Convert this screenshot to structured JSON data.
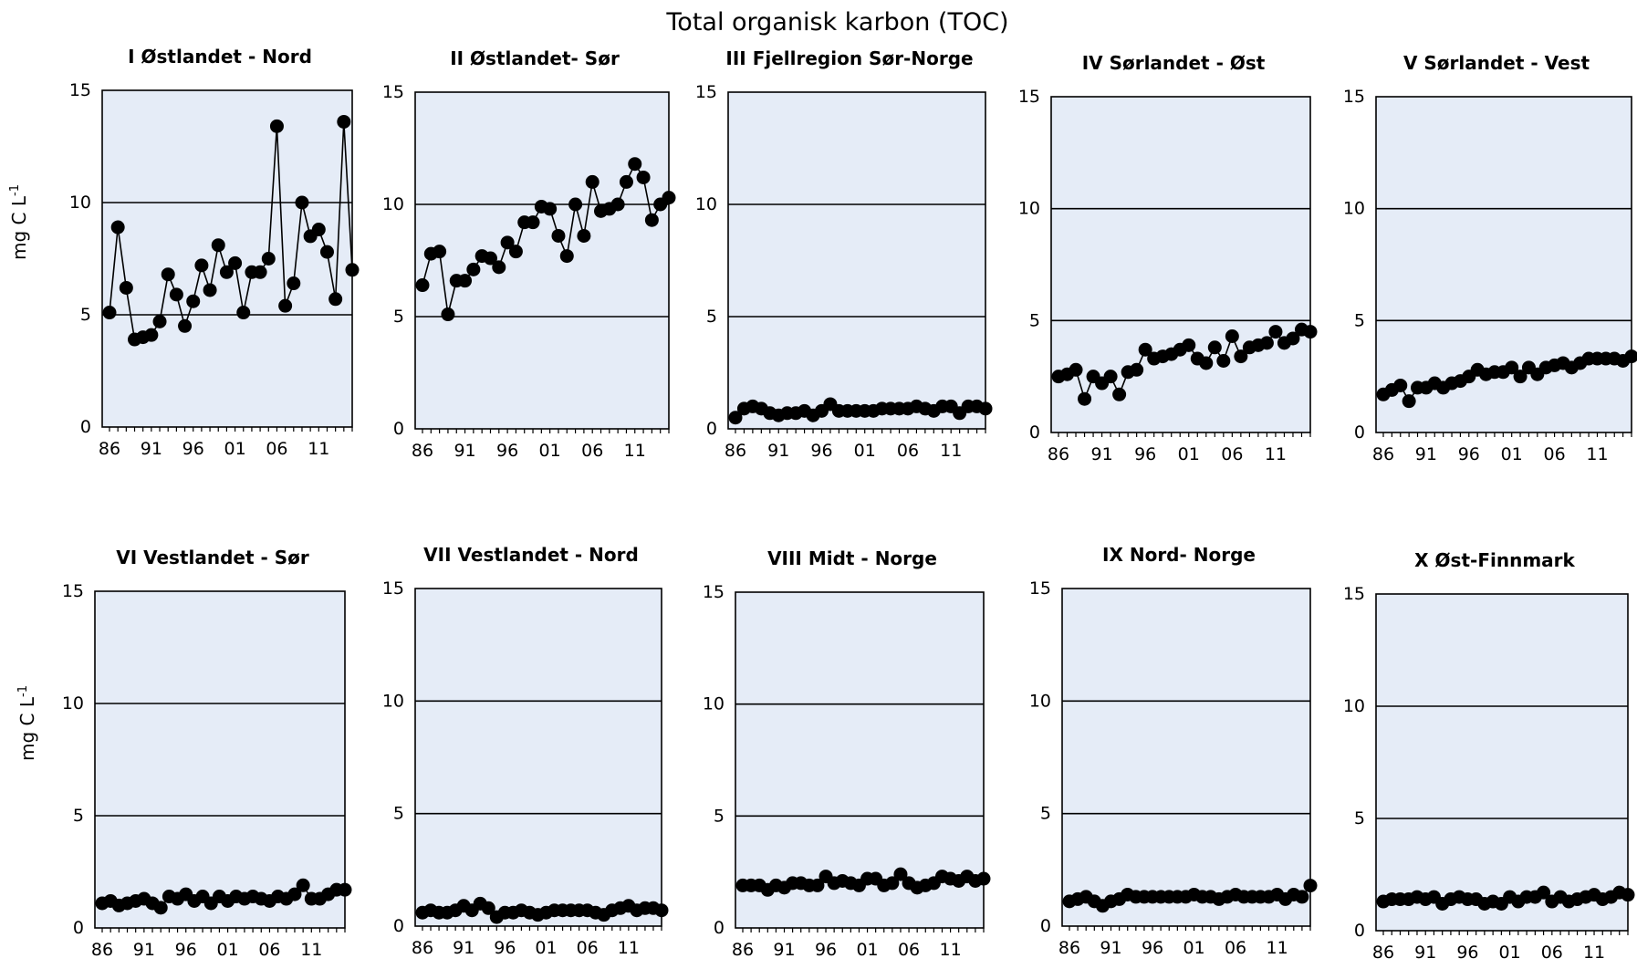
{
  "figure": {
    "title": "Total organisk karbon (TOC)",
    "ylabel_base": "mg C L",
    "ylabel_sup": "-1",
    "plot_bg": "#e5ecf7",
    "marker_color": "#000000",
    "line_color": "#000000"
  },
  "chart_data": [
    {
      "type": "line",
      "title": "I Østlandet - Nord",
      "ylim": [
        0,
        15
      ],
      "yticks": [
        "0",
        "5",
        "10",
        "15"
      ],
      "xticks": [
        "86",
        "91",
        "96",
        "01",
        "06",
        "11"
      ],
      "grid": true,
      "x": [
        1986,
        1987,
        1988,
        1989,
        1990,
        1991,
        1992,
        1993,
        1994,
        1995,
        1996,
        1997,
        1998,
        1999,
        2000,
        2001,
        2002,
        2003,
        2004,
        2005,
        2006,
        2007,
        2008,
        2009,
        2010,
        2011,
        2012,
        2013,
        2014,
        2015
      ],
      "values": [
        5.1,
        8.9,
        6.2,
        3.9,
        4.0,
        4.1,
        4.7,
        6.8,
        5.9,
        4.5,
        5.6,
        7.2,
        6.1,
        8.1,
        6.9,
        7.3,
        5.1,
        6.9,
        6.9,
        7.5,
        13.4,
        5.4,
        6.4,
        10.0,
        8.5,
        8.8,
        7.8,
        5.7,
        13.6,
        7.0
      ]
    },
    {
      "type": "line",
      "title": "II Østlandet- Sør",
      "ylim": [
        0,
        15
      ],
      "yticks": [
        "0",
        "5",
        "10",
        "15"
      ],
      "xticks": [
        "86",
        "91",
        "96",
        "01",
        "06",
        "11"
      ],
      "grid": true,
      "x": [
        1986,
        1987,
        1988,
        1989,
        1990,
        1991,
        1992,
        1993,
        1994,
        1995,
        1996,
        1997,
        1998,
        1999,
        2000,
        2001,
        2002,
        2003,
        2004,
        2005,
        2006,
        2007,
        2008,
        2009,
        2010,
        2011,
        2012,
        2013,
        2014,
        2015
      ],
      "values": [
        6.4,
        7.8,
        7.9,
        5.1,
        6.6,
        6.6,
        7.1,
        7.7,
        7.6,
        7.2,
        8.3,
        7.9,
        9.2,
        9.2,
        9.9,
        9.8,
        8.6,
        7.7,
        10.0,
        8.6,
        11.0,
        9.7,
        9.8,
        10.0,
        11.0,
        11.8,
        11.2,
        9.3,
        10.0,
        10.3
      ]
    },
    {
      "type": "line",
      "title": "III Fjellregion Sør-Norge",
      "ylim": [
        0,
        15
      ],
      "yticks": [
        "0",
        "5",
        "10",
        "15"
      ],
      "xticks": [
        "86",
        "91",
        "96",
        "01",
        "06",
        "11"
      ],
      "grid": true,
      "x": [
        1986,
        1987,
        1988,
        1989,
        1990,
        1991,
        1992,
        1993,
        1994,
        1995,
        1996,
        1997,
        1998,
        1999,
        2000,
        2001,
        2002,
        2003,
        2004,
        2005,
        2006,
        2007,
        2008,
        2009,
        2010,
        2011,
        2012,
        2013,
        2014,
        2015
      ],
      "values": [
        0.5,
        0.9,
        1.0,
        0.9,
        0.7,
        0.6,
        0.7,
        0.7,
        0.8,
        0.6,
        0.8,
        1.1,
        0.8,
        0.8,
        0.8,
        0.8,
        0.8,
        0.9,
        0.9,
        0.9,
        0.9,
        1.0,
        0.9,
        0.8,
        1.0,
        1.0,
        0.7,
        1.0,
        1.0,
        0.9
      ]
    },
    {
      "type": "line",
      "title": "IV Sørlandet - Øst",
      "ylim": [
        0,
        15
      ],
      "yticks": [
        "0",
        "5",
        "10",
        "15"
      ],
      "xticks": [
        "86",
        "91",
        "96",
        "01",
        "06",
        "11"
      ],
      "grid": true,
      "x": [
        1986,
        1987,
        1988,
        1989,
        1990,
        1991,
        1992,
        1993,
        1994,
        1995,
        1996,
        1997,
        1998,
        1999,
        2000,
        2001,
        2002,
        2003,
        2004,
        2005,
        2006,
        2007,
        2008,
        2009,
        2010,
        2011,
        2012,
        2013,
        2014,
        2015
      ],
      "values": [
        2.5,
        2.6,
        2.8,
        1.5,
        2.5,
        2.2,
        2.5,
        1.7,
        2.7,
        2.8,
        3.7,
        3.3,
        3.4,
        3.5,
        3.7,
        3.9,
        3.3,
        3.1,
        3.8,
        3.2,
        4.3,
        3.4,
        3.8,
        3.9,
        4.0,
        4.5,
        4.0,
        4.2,
        4.6,
        4.5
      ]
    },
    {
      "type": "line",
      "title": "V Sørlandet - Vest",
      "ylim": [
        0,
        15
      ],
      "yticks": [
        "0",
        "5",
        "10",
        "15"
      ],
      "xticks": [
        "86",
        "91",
        "96",
        "01",
        "06",
        "11"
      ],
      "grid": true,
      "x": [
        1986,
        1987,
        1988,
        1989,
        1990,
        1991,
        1992,
        1993,
        1994,
        1995,
        1996,
        1997,
        1998,
        1999,
        2000,
        2001,
        2002,
        2003,
        2004,
        2005,
        2006,
        2007,
        2008,
        2009,
        2010,
        2011,
        2012,
        2013,
        2014,
        2015
      ],
      "values": [
        1.7,
        1.9,
        2.1,
        1.4,
        2.0,
        2.0,
        2.2,
        2.0,
        2.2,
        2.3,
        2.5,
        2.8,
        2.6,
        2.7,
        2.7,
        2.9,
        2.5,
        2.9,
        2.6,
        2.9,
        3.0,
        3.1,
        2.9,
        3.1,
        3.3,
        3.3,
        3.3,
        3.3,
        3.2,
        3.4
      ]
    },
    {
      "type": "line",
      "title": "VI Vestlandet - Sør",
      "ylim": [
        0,
        15
      ],
      "yticks": [
        "0",
        "5",
        "10",
        "15"
      ],
      "xticks": [
        "86",
        "91",
        "96",
        "01",
        "06",
        "11"
      ],
      "grid": true,
      "x": [
        1986,
        1987,
        1988,
        1989,
        1990,
        1991,
        1992,
        1993,
        1994,
        1995,
        1996,
        1997,
        1998,
        1999,
        2000,
        2001,
        2002,
        2003,
        2004,
        2005,
        2006,
        2007,
        2008,
        2009,
        2010,
        2011,
        2012,
        2013,
        2014,
        2015
      ],
      "values": [
        1.1,
        1.2,
        1.0,
        1.1,
        1.2,
        1.3,
        1.1,
        0.9,
        1.4,
        1.3,
        1.5,
        1.2,
        1.4,
        1.1,
        1.4,
        1.2,
        1.4,
        1.3,
        1.4,
        1.3,
        1.2,
        1.4,
        1.3,
        1.5,
        1.9,
        1.3,
        1.3,
        1.5,
        1.7,
        1.7
      ]
    },
    {
      "type": "line",
      "title": "VII Vestlandet - Nord",
      "ylim": [
        0,
        15
      ],
      "yticks": [
        "0",
        "5",
        "10",
        "15"
      ],
      "xticks": [
        "86",
        "91",
        "96",
        "01",
        "06",
        "11"
      ],
      "grid": true,
      "x": [
        1986,
        1987,
        1988,
        1989,
        1990,
        1991,
        1992,
        1993,
        1994,
        1995,
        1996,
        1997,
        1998,
        1999,
        2000,
        2001,
        2002,
        2003,
        2004,
        2005,
        2006,
        2007,
        2008,
        2009,
        2010,
        2011,
        2012,
        2013,
        2014,
        2015
      ],
      "values": [
        0.6,
        0.7,
        0.6,
        0.6,
        0.7,
        0.9,
        0.7,
        1.0,
        0.8,
        0.4,
        0.6,
        0.6,
        0.7,
        0.6,
        0.5,
        0.6,
        0.7,
        0.7,
        0.7,
        0.7,
        0.7,
        0.6,
        0.5,
        0.7,
        0.8,
        0.9,
        0.7,
        0.8,
        0.8,
        0.7
      ]
    },
    {
      "type": "line",
      "title": "VIII Midt - Norge",
      "ylim": [
        0,
        15
      ],
      "yticks": [
        "0",
        "5",
        "10",
        "15"
      ],
      "xticks": [
        "86",
        "91",
        "96",
        "01",
        "06",
        "11"
      ],
      "grid": true,
      "x": [
        1986,
        1987,
        1988,
        1989,
        1990,
        1991,
        1992,
        1993,
        1994,
        1995,
        1996,
        1997,
        1998,
        1999,
        2000,
        2001,
        2002,
        2003,
        2004,
        2005,
        2006,
        2007,
        2008,
        2009,
        2010,
        2011,
        2012,
        2013,
        2014,
        2015
      ],
      "values": [
        1.9,
        1.9,
        1.9,
        1.7,
        1.9,
        1.8,
        2.0,
        2.0,
        1.9,
        1.9,
        2.3,
        2.0,
        2.1,
        2.0,
        1.9,
        2.2,
        2.2,
        1.9,
        2.0,
        2.4,
        2.0,
        1.8,
        1.9,
        2.0,
        2.3,
        2.2,
        2.1,
        2.3,
        2.1,
        2.2
      ]
    },
    {
      "type": "line",
      "title": "IX Nord- Norge",
      "ylim": [
        0,
        15
      ],
      "yticks": [
        "0",
        "5",
        "10",
        "15"
      ],
      "xticks": [
        "86",
        "91",
        "96",
        "01",
        "06",
        "11"
      ],
      "grid": true,
      "x": [
        1986,
        1987,
        1988,
        1989,
        1990,
        1991,
        1992,
        1993,
        1994,
        1995,
        1996,
        1997,
        1998,
        1999,
        2000,
        2001,
        2002,
        2003,
        2004,
        2005,
        2006,
        2007,
        2008,
        2009,
        2010,
        2011,
        2012,
        2013,
        2014,
        2015
      ],
      "values": [
        1.1,
        1.2,
        1.3,
        1.1,
        0.9,
        1.1,
        1.2,
        1.4,
        1.3,
        1.3,
        1.3,
        1.3,
        1.3,
        1.3,
        1.3,
        1.4,
        1.3,
        1.3,
        1.2,
        1.3,
        1.4,
        1.3,
        1.3,
        1.3,
        1.3,
        1.4,
        1.2,
        1.4,
        1.3,
        1.8
      ]
    },
    {
      "type": "line",
      "title": "X Øst-Finnmark",
      "ylim": [
        0,
        15
      ],
      "yticks": [
        "0",
        "5",
        "10",
        "15"
      ],
      "xticks": [
        "86",
        "91",
        "96",
        "01",
        "06",
        "11"
      ],
      "grid": true,
      "x": [
        1986,
        1987,
        1988,
        1989,
        1990,
        1991,
        1992,
        1993,
        1994,
        1995,
        1996,
        1997,
        1998,
        1999,
        2000,
        2001,
        2002,
        2003,
        2004,
        2005,
        2006,
        2007,
        2008,
        2009,
        2010,
        2011,
        2012,
        2013,
        2014,
        2015
      ],
      "values": [
        1.3,
        1.4,
        1.4,
        1.4,
        1.5,
        1.4,
        1.5,
        1.2,
        1.4,
        1.5,
        1.4,
        1.4,
        1.2,
        1.3,
        1.2,
        1.5,
        1.3,
        1.5,
        1.5,
        1.7,
        1.3,
        1.5,
        1.3,
        1.4,
        1.5,
        1.6,
        1.4,
        1.5,
        1.7,
        1.6
      ]
    }
  ]
}
